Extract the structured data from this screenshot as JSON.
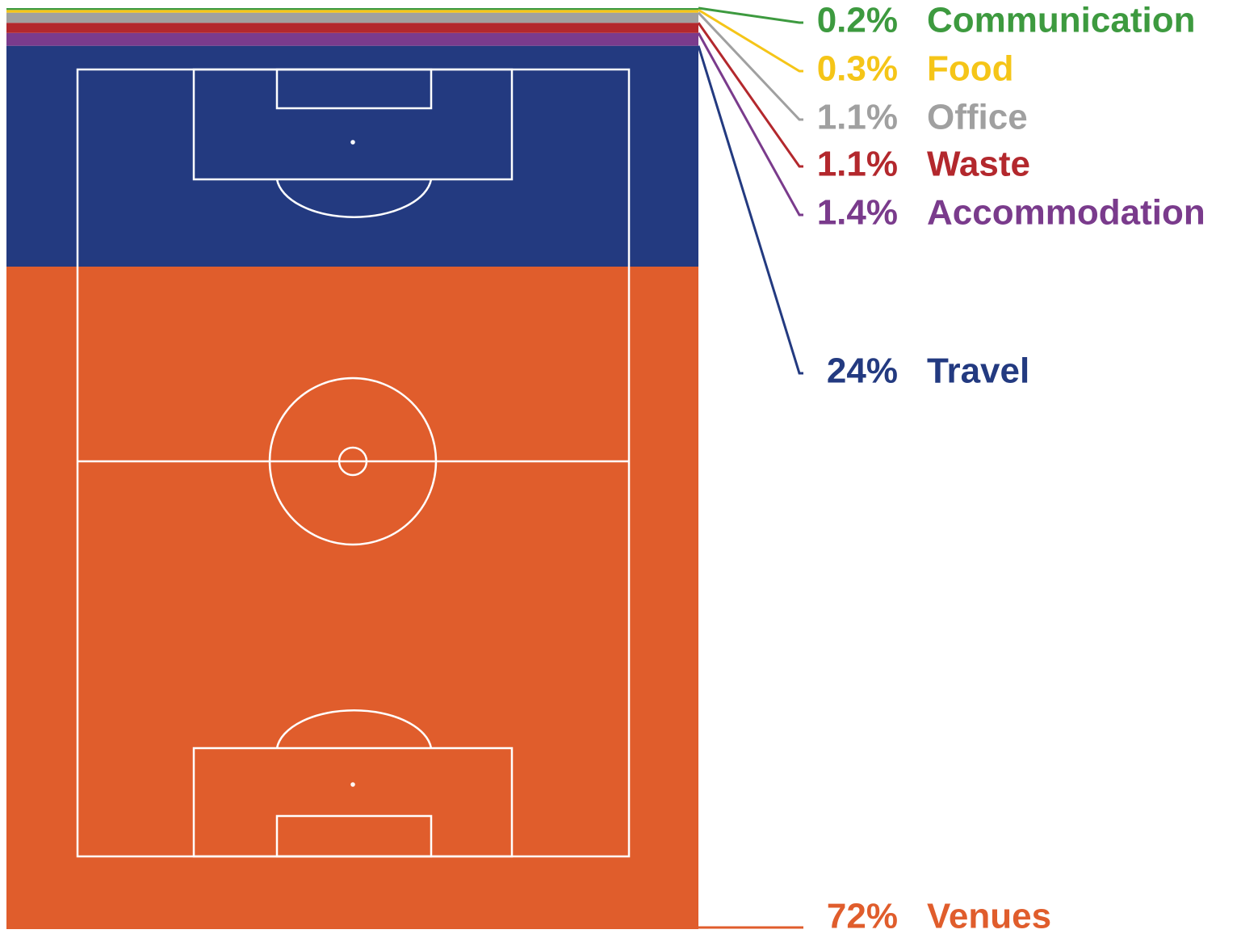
{
  "chart_data": {
    "type": "stacked_bar",
    "series": [
      {
        "name": "Venues",
        "color": "#e05d2c",
        "values": [
          72
        ],
        "value_labels": [
          "72%"
        ]
      },
      {
        "name": "Travel",
        "color": "#233a80",
        "values": [
          24
        ],
        "value_labels": [
          "24%"
        ]
      },
      {
        "name": "Accommodation",
        "color": "#7a3b8c",
        "values": [
          1.4
        ],
        "value_labels": [
          "1.4%"
        ]
      },
      {
        "name": "Waste",
        "color": "#b3282d",
        "values": [
          1.1
        ],
        "value_labels": [
          "1.1%"
        ]
      },
      {
        "name": "Office",
        "color": "#a0a0a0",
        "values": [
          1.1
        ],
        "value_labels": [
          "1.1%"
        ]
      },
      {
        "name": "Food",
        "color": "#f5c518",
        "values": [
          0.3
        ],
        "value_labels": [
          "0.3%"
        ]
      },
      {
        "name": "Communication",
        "color": "#3d9a3f",
        "values": [
          0.2
        ],
        "value_labels": [
          "0.2%"
        ]
      }
    ]
  }
}
